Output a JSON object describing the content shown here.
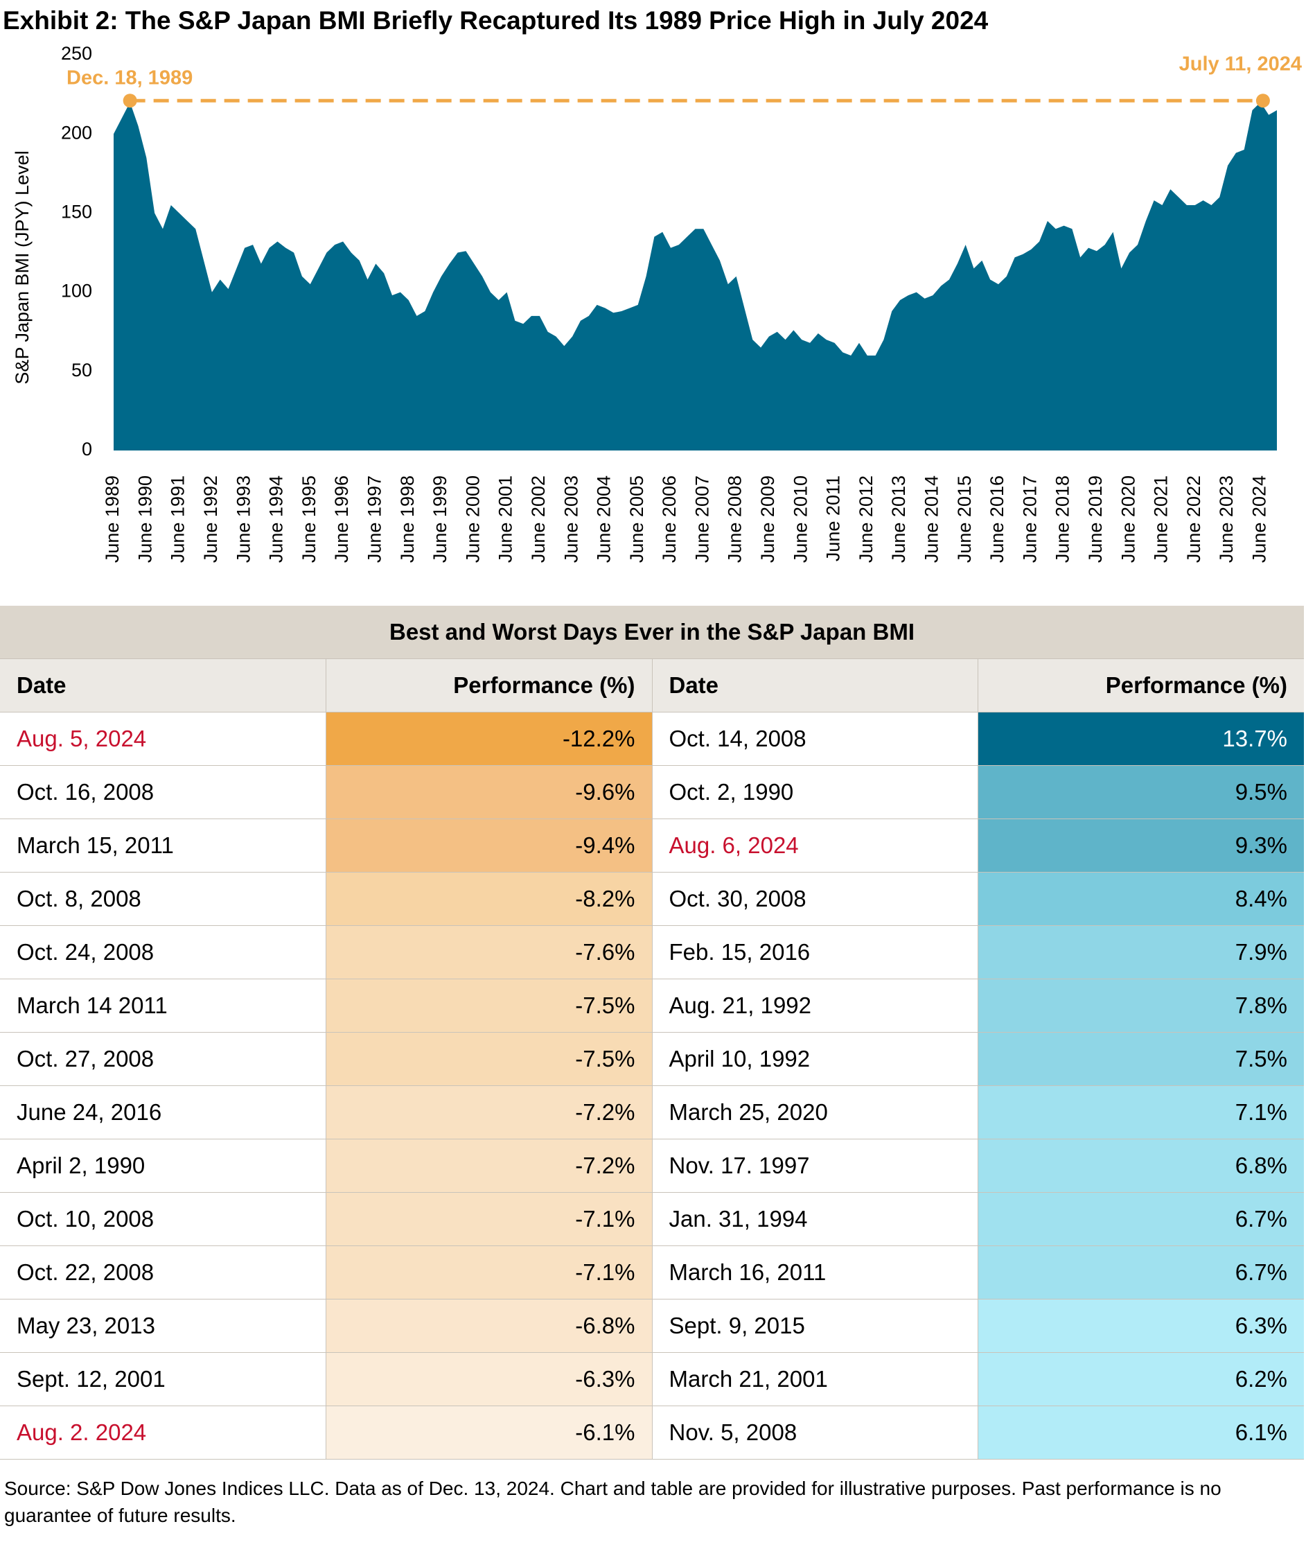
{
  "chart_data": {
    "type": "area",
    "title": "Exhibit 2: The S&P Japan BMI Briefly Recaptured Its 1989 Price High in July 2024",
    "y_label": "S&P Japan BMI (JPY) Level",
    "color": "#00698a",
    "ylim": [
      0,
      250
    ],
    "yticks": [
      0,
      50,
      100,
      150,
      200,
      250
    ],
    "grid": false,
    "categories": [
      "June 1989",
      null,
      null,
      null,
      "June 1990",
      null,
      null,
      null,
      "June 1991",
      null,
      null,
      null,
      "June 1992",
      null,
      null,
      null,
      "June 1993",
      null,
      null,
      null,
      "June 1994",
      null,
      null,
      null,
      "June 1995",
      null,
      null,
      null,
      "June 1996",
      null,
      null,
      null,
      "June 1997",
      null,
      null,
      null,
      "June 1998",
      null,
      null,
      null,
      "June 1999",
      null,
      null,
      null,
      "June 2000",
      null,
      null,
      null,
      "June 2001",
      null,
      null,
      null,
      "June 2002",
      null,
      null,
      null,
      "June 2003",
      null,
      null,
      null,
      "June 2004",
      null,
      null,
      null,
      "June 2005",
      null,
      null,
      null,
      "June 2006",
      null,
      null,
      null,
      "June 2007",
      null,
      null,
      null,
      "June 2008",
      null,
      null,
      null,
      "June 2009",
      null,
      null,
      null,
      "June 2010",
      null,
      null,
      null,
      "June 2011",
      null,
      null,
      null,
      "June 2012",
      null,
      null,
      null,
      "June 2013",
      null,
      null,
      null,
      "June 2014",
      null,
      null,
      null,
      "June 2015",
      null,
      null,
      null,
      "June 2016",
      null,
      null,
      null,
      "June 2017",
      null,
      null,
      null,
      "June 2018",
      null,
      null,
      null,
      "June 2019",
      null,
      null,
      null,
      "June 2020",
      null,
      null,
      null,
      "June 2021",
      null,
      null,
      null,
      "June 2022",
      null,
      null,
      null,
      "June 2023",
      null,
      null,
      null,
      "June 2024",
      null,
      null
    ],
    "values": [
      200,
      210,
      220,
      205,
      185,
      150,
      140,
      155,
      150,
      145,
      140,
      120,
      100,
      108,
      102,
      115,
      128,
      130,
      118,
      128,
      132,
      128,
      125,
      110,
      105,
      115,
      125,
      130,
      132,
      125,
      120,
      108,
      118,
      112,
      98,
      100,
      95,
      85,
      88,
      100,
      110,
      118,
      125,
      126,
      118,
      110,
      100,
      95,
      100,
      82,
      80,
      85,
      85,
      75,
      72,
      66,
      72,
      82,
      85,
      92,
      90,
      87,
      88,
      90,
      92,
      110,
      135,
      138,
      128,
      130,
      135,
      140,
      140,
      130,
      120,
      105,
      110,
      90,
      70,
      65,
      72,
      75,
      70,
      76,
      70,
      68,
      74,
      70,
      68,
      62,
      60,
      68,
      60,
      60,
      70,
      88,
      95,
      98,
      100,
      96,
      98,
      104,
      108,
      118,
      130,
      115,
      120,
      108,
      105,
      110,
      122,
      124,
      127,
      132,
      145,
      140,
      142,
      140,
      122,
      128,
      126,
      130,
      138,
      115,
      125,
      130,
      145,
      158,
      155,
      165,
      160,
      155,
      155,
      158,
      155,
      160,
      180,
      188,
      190,
      215,
      220,
      212,
      215
    ],
    "annotations": [
      {
        "label": "Dec. 18, 1989",
        "value": 221,
        "color": "#f0a848"
      },
      {
        "label": "July 11, 2024",
        "value": 221,
        "color": "#f0a848"
      }
    ]
  },
  "table": {
    "title": "Best and Worst Days Ever in the S&P Japan BMI",
    "columns": [
      "Date",
      "Performance (%)",
      "Date",
      "Performance (%)"
    ],
    "rows": [
      [
        "Aug. 5, 2024",
        "-12.2%",
        "Oct. 14, 2008",
        "13.7%"
      ],
      [
        "Oct. 16, 2008",
        "-9.6%",
        "Oct. 2, 1990",
        "9.5%"
      ],
      [
        "March 15, 2011",
        "-9.4%",
        "Aug. 6, 2024",
        "9.3%"
      ],
      [
        "Oct. 8, 2008",
        "-8.2%",
        "Oct. 30, 2008",
        "8.4%"
      ],
      [
        "Oct. 24, 2008",
        "-7.6%",
        "Feb. 15, 2016",
        "7.9%"
      ],
      [
        "March 14 2011",
        "-7.5%",
        "Aug. 21, 1992",
        "7.8%"
      ],
      [
        "Oct. 27, 2008",
        "-7.5%",
        "April 10, 1992",
        "7.5%"
      ],
      [
        "June 24, 2016",
        "-7.2%",
        "March 25, 2020",
        "7.1%"
      ],
      [
        "April 2, 1990",
        "-7.2%",
        "Nov. 17. 1997",
        "6.8%"
      ],
      [
        "Oct. 10, 2008",
        "-7.1%",
        "Jan. 31, 1994",
        "6.7%"
      ],
      [
        "Oct. 22, 2008",
        "-7.1%",
        "March 16, 2011",
        "6.7%"
      ],
      [
        "May 23, 2013",
        "-6.8%",
        "Sept. 9, 2015",
        "6.3%"
      ],
      [
        "Sept. 12, 2001",
        "-6.3%",
        "March 21, 2001",
        "6.2%"
      ],
      [
        "Aug. 2. 2024",
        "-6.1%",
        "Nov. 5, 2008",
        "6.1%"
      ]
    ]
  },
  "footer": {
    "source": "Source: S&P Dow Jones Indices LLC. Data as of Dec. 13, 2024. Chart and table are provided for illustrative purposes. Past performance is no guarantee of future results."
  }
}
